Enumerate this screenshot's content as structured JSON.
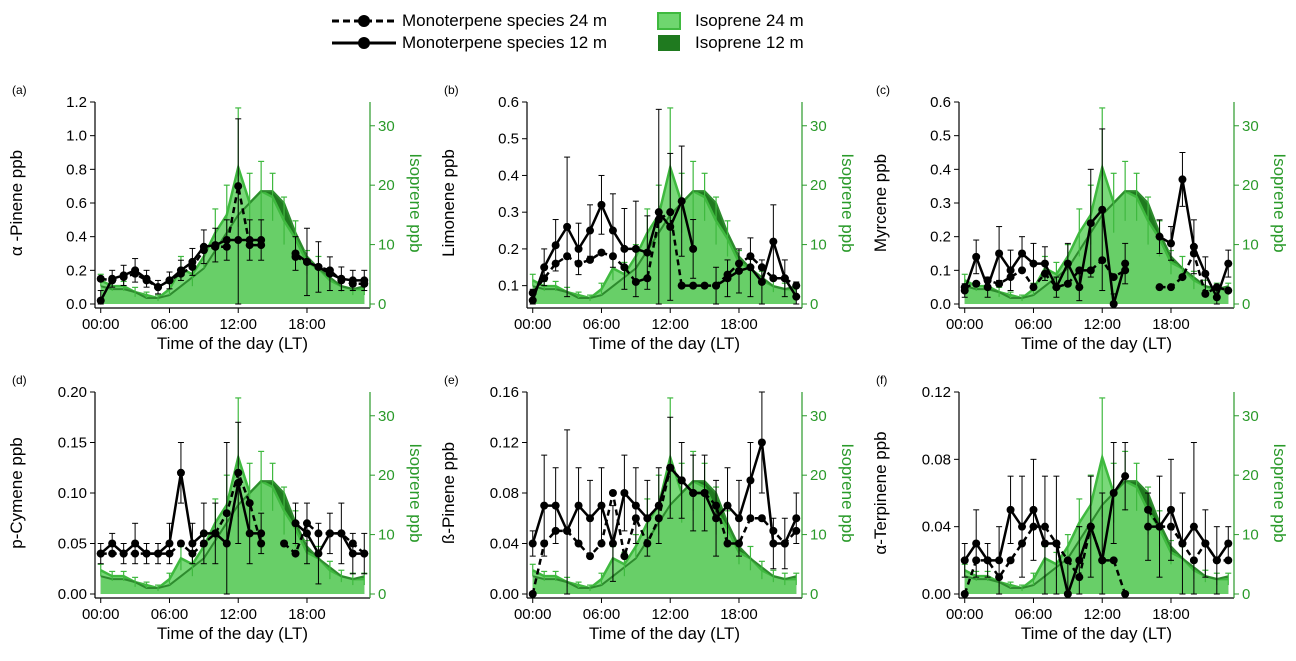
{
  "legend": {
    "items": [
      {
        "key": "mono24",
        "label": "Monoterpene species 24 m",
        "style": "dashed-marker"
      },
      {
        "key": "mono12",
        "label": "Monoterpene species 12 m",
        "style": "solid-marker"
      },
      {
        "key": "iso24",
        "label": "Isoprene 24 m",
        "style": "light-green-fill"
      },
      {
        "key": "iso12",
        "label": "Isoprene 12 m",
        "style": "dark-green-fill"
      }
    ]
  },
  "colors": {
    "monoterpene": "#000000",
    "isoprene24_fill": "#6fd66f",
    "isoprene12_fill": "#1f7a1f",
    "isoprene_axis": "#2a9a2a",
    "isoprene_line": "#3fb93f"
  },
  "shared": {
    "xlabel": "Time of the day (LT)",
    "x_ticks": [
      "00:00",
      "06:00",
      "12:00",
      "18:00"
    ],
    "x_tick_hours": [
      0,
      6,
      12,
      18
    ],
    "y2_label": "Isoprene ppb",
    "y2_ticks": [
      "0",
      "10",
      "20",
      "30"
    ],
    "y2_range": [
      0,
      34
    ]
  },
  "isoprene": {
    "hours": [
      0,
      1,
      2,
      3,
      4,
      5,
      6,
      7,
      8,
      9,
      10,
      11,
      12,
      13,
      14,
      15,
      16,
      17,
      18,
      19,
      20,
      21,
      22,
      23
    ],
    "iso24": [
      4,
      3,
      3,
      2,
      1.5,
      1,
      2.5,
      6,
      5,
      8,
      12,
      15,
      23,
      17,
      19,
      18,
      14,
      11,
      7,
      6,
      4,
      3,
      2.5,
      2.5
    ],
    "iso12": [
      3,
      2.5,
      2.5,
      2,
      1,
      1,
      1.5,
      3,
      4.5,
      6,
      9,
      12,
      15,
      17,
      19,
      19,
      17,
      12,
      8,
      6,
      4.5,
      3,
      2.5,
      3
    ],
    "err24": [
      1,
      0.8,
      0.8,
      0.8,
      0.5,
      0.5,
      1,
      2,
      2,
      2,
      4,
      5,
      10,
      5,
      5,
      4,
      4,
      3,
      2,
      2,
      1.5,
      1,
      1,
      1
    ],
    "peak_error_top": 33
  },
  "chart_data": [
    {
      "id": "a",
      "type": "line",
      "panel_label": "(a)",
      "ylabel": "α -Pinene ppb",
      "ylim": [
        0,
        1.2
      ],
      "y_ticks": [
        "0.0",
        "0.2",
        "0.4",
        "0.6",
        "0.8",
        "1.0",
        "1.2"
      ],
      "x": [
        0,
        1,
        2,
        3,
        4,
        5,
        6,
        7,
        8,
        9,
        10,
        11,
        12,
        13,
        14,
        15,
        16,
        17,
        18,
        19,
        20,
        21,
        22,
        23
      ],
      "series": [
        {
          "key": "mono24",
          "values": [
            0.15,
            0.14,
            0.16,
            0.18,
            0.14,
            0.1,
            0.14,
            0.18,
            0.22,
            0.32,
            0.34,
            0.34,
            0.7,
            0.35,
            0.35,
            null,
            null,
            0.28,
            0.25,
            0.22,
            0.2,
            0.14,
            0.12,
            0.12
          ]
        },
        {
          "key": "mono12",
          "values": [
            0.02,
            0.15,
            0.17,
            0.2,
            0.15,
            0.1,
            0.14,
            0.2,
            0.25,
            0.34,
            0.35,
            0.38,
            0.38,
            0.38,
            0.38,
            null,
            null,
            0.3,
            0.25,
            0.22,
            0.18,
            0.15,
            0.14,
            0.14
          ]
        }
      ],
      "mono_err": [
        0.06,
        0.05,
        0.06,
        0.07,
        0.05,
        0.04,
        0.05,
        0.06,
        0.08,
        0.1,
        0.1,
        0.12,
        0.72,
        0.12,
        0.12,
        null,
        null,
        0.1,
        0.2,
        0.15,
        0.1,
        0.07,
        0.06,
        0.06
      ]
    },
    {
      "id": "b",
      "type": "line",
      "panel_label": "(b)",
      "ylabel": "Limonene ppb",
      "ylim": [
        0.05,
        0.6
      ],
      "y_ticks": [
        "0.1",
        "0.2",
        "0.3",
        "0.4",
        "0.5",
        "0.6"
      ],
      "y_tick_values": [
        0.1,
        0.2,
        0.3,
        0.4,
        0.5,
        0.6
      ],
      "x": [
        0,
        1,
        2,
        3,
        4,
        5,
        6,
        7,
        8,
        9,
        10,
        11,
        12,
        13,
        14,
        15,
        16,
        17,
        18,
        19,
        20,
        21,
        22,
        23
      ],
      "series": [
        {
          "key": "mono24",
          "values": [
            0.08,
            0.12,
            0.16,
            0.18,
            0.16,
            0.17,
            0.19,
            0.18,
            0.15,
            0.11,
            0.12,
            0.28,
            0.3,
            0.1,
            0.1,
            0.1,
            0.1,
            0.13,
            0.16,
            0.18,
            0.15,
            0.12,
            0.12,
            0.1
          ]
        },
        {
          "key": "mono12",
          "values": [
            0.06,
            0.15,
            0.21,
            0.26,
            0.2,
            0.25,
            0.32,
            0.25,
            0.2,
            0.2,
            0.19,
            0.3,
            0.26,
            0.33,
            0.2,
            null,
            0.1,
            0.12,
            0.14,
            0.15,
            0.11,
            0.22,
            0.12,
            0.07
          ]
        }
      ],
      "mono_err": [
        0.03,
        0.05,
        0.07,
        0.19,
        0.07,
        0.07,
        0.08,
        0.1,
        0.11,
        0.13,
        0.1,
        0.28,
        0.2,
        0.15,
        0.08,
        null,
        0.05,
        0.05,
        0.06,
        0.08,
        0.06,
        0.1,
        0.05,
        0.04
      ]
    },
    {
      "id": "c",
      "type": "line",
      "panel_label": "(c)",
      "ylabel": "Myrcene ppb",
      "ylim": [
        0,
        0.6
      ],
      "y_ticks": [
        "0.0",
        "0.1",
        "0.2",
        "0.3",
        "0.4",
        "0.5",
        "0.6"
      ],
      "x": [
        0,
        1,
        2,
        3,
        4,
        5,
        6,
        7,
        8,
        9,
        10,
        11,
        12,
        13,
        14,
        15,
        16,
        17,
        18,
        19,
        20,
        21,
        22,
        23
      ],
      "series": [
        {
          "key": "mono24",
          "values": [
            0.05,
            0.06,
            0.07,
            0.06,
            0.08,
            0.1,
            0.05,
            0.09,
            0.05,
            0.06,
            0.1,
            0.1,
            0.13,
            0.08,
            0.1,
            null,
            null,
            0.05,
            0.05,
            0.08,
            0.15,
            0.03,
            0.05,
            0.04
          ]
        },
        {
          "key": "mono12",
          "values": [
            0.04,
            0.14,
            0.05,
            0.15,
            0.1,
            0.15,
            0.12,
            0.12,
            0.05,
            0.12,
            0.05,
            0.24,
            0.28,
            0.0,
            0.12,
            null,
            null,
            0.2,
            0.18,
            0.37,
            0.17,
            0.09,
            0.02,
            0.12
          ]
        }
      ],
      "mono_err": [
        0.02,
        0.05,
        0.03,
        0.08,
        0.06,
        0.05,
        0.06,
        0.05,
        0.03,
        0.06,
        0.04,
        0.16,
        0.24,
        0.03,
        0.06,
        null,
        null,
        0.05,
        0.05,
        0.08,
        0.08,
        0.05,
        0.03,
        0.04
      ]
    },
    {
      "id": "d",
      "type": "line",
      "panel_label": "(d)",
      "ylabel": "p-Cymene ppb",
      "ylim": [
        0,
        0.2
      ],
      "y_ticks": [
        "0.00",
        "0.05",
        "0.10",
        "0.15",
        "0.20"
      ],
      "x": [
        0,
        1,
        2,
        3,
        4,
        5,
        6,
        7,
        8,
        9,
        10,
        11,
        12,
        13,
        14,
        15,
        16,
        17,
        18,
        19,
        20,
        21,
        22,
        23
      ],
      "series": [
        {
          "key": "mono24",
          "values": [
            0.04,
            0.04,
            0.04,
            0.04,
            0.04,
            0.04,
            0.04,
            0.05,
            0.04,
            0.05,
            0.06,
            0.08,
            0.12,
            0.09,
            0.05,
            null,
            0.05,
            0.04,
            0.07,
            0.06,
            0.06,
            0.06,
            0.05,
            0.04
          ]
        },
        {
          "key": "mono12",
          "values": [
            0.04,
            0.05,
            0.04,
            0.05,
            0.04,
            0.04,
            0.05,
            0.12,
            0.05,
            0.06,
            0.06,
            0.05,
            0.11,
            0.06,
            0.06,
            null,
            null,
            0.07,
            0.06,
            0.04,
            0.06,
            0.06,
            0.04,
            0.04
          ]
        }
      ],
      "mono_err": [
        0.01,
        0.01,
        0.01,
        0.02,
        0.01,
        0.01,
        0.02,
        0.03,
        0.02,
        0.03,
        0.03,
        0.1,
        0.06,
        0.03,
        0.02,
        null,
        0.02,
        0.02,
        0.03,
        0.03,
        0.02,
        0.03,
        0.02,
        0.02
      ]
    },
    {
      "id": "e",
      "type": "line",
      "panel_label": "(e)",
      "ylabel": "ß-Pinene ppb",
      "ylim": [
        0,
        0.16
      ],
      "y_ticks": [
        "0.00",
        "0.04",
        "0.08",
        "0.12",
        "0.16"
      ],
      "x": [
        0,
        1,
        2,
        3,
        4,
        5,
        6,
        7,
        8,
        9,
        10,
        11,
        12,
        13,
        14,
        15,
        16,
        17,
        18,
        19,
        20,
        21,
        22,
        23
      ],
      "series": [
        {
          "key": "mono24",
          "values": [
            0.0,
            0.04,
            0.05,
            0.05,
            0.04,
            0.03,
            0.04,
            0.08,
            0.03,
            0.06,
            0.04,
            0.06,
            0.1,
            0.09,
            0.08,
            0.08,
            0.07,
            0.04,
            0.04,
            0.06,
            0.06,
            0.05,
            0.04,
            0.05
          ]
        },
        {
          "key": "mono12",
          "values": [
            0.04,
            0.07,
            0.07,
            0.05,
            0.07,
            0.06,
            0.07,
            0.04,
            0.08,
            0.07,
            0.06,
            0.07,
            0.1,
            0.09,
            0.08,
            0.08,
            0.06,
            0.07,
            0.06,
            0.09,
            0.12,
            0.04,
            0.04,
            0.06
          ]
        }
      ],
      "mono_err": [
        0.01,
        0.04,
        0.03,
        0.08,
        0.03,
        0.03,
        0.03,
        0.03,
        0.03,
        0.03,
        0.03,
        0.03,
        0.04,
        0.03,
        0.03,
        0.03,
        0.03,
        0.03,
        0.03,
        0.03,
        0.04,
        0.02,
        0.02,
        0.02
      ]
    },
    {
      "id": "f",
      "type": "line",
      "panel_label": "(f)",
      "ylabel": "α-Terpinene ppb",
      "ylim": [
        0,
        0.12
      ],
      "y_ticks": [
        "0.00",
        "0.04",
        "0.08",
        "0.12"
      ],
      "x": [
        0,
        1,
        2,
        3,
        4,
        5,
        6,
        7,
        8,
        9,
        10,
        11,
        12,
        13,
        14,
        15,
        16,
        17,
        18,
        19,
        20,
        21,
        22,
        23
      ],
      "series": [
        {
          "key": "mono24",
          "values": [
            0.0,
            0.02,
            0.02,
            0.01,
            0.02,
            0.03,
            0.04,
            0.04,
            0.03,
            0.02,
            0.01,
            0.04,
            0.02,
            0.02,
            0.0,
            null,
            0.05,
            0.04,
            0.04,
            0.03,
            0.02,
            0.03,
            0.02,
            0.02
          ]
        },
        {
          "key": "mono12",
          "values": [
            0.02,
            0.03,
            0.02,
            0.02,
            0.05,
            0.04,
            0.05,
            0.03,
            0.03,
            0.0,
            0.02,
            0.04,
            0.02,
            0.06,
            0.07,
            null,
            0.04,
            0.04,
            0.05,
            0.03,
            0.04,
            0.03,
            0.02,
            0.03
          ]
        }
      ],
      "mono_err": [
        0.01,
        0.02,
        0.01,
        0.02,
        0.02,
        0.03,
        0.03,
        0.04,
        0.04,
        0.02,
        0.02,
        0.03,
        0.04,
        0.03,
        0.02,
        null,
        0.02,
        0.03,
        0.03,
        0.03,
        0.05,
        0.02,
        0.02,
        0.01
      ]
    }
  ]
}
